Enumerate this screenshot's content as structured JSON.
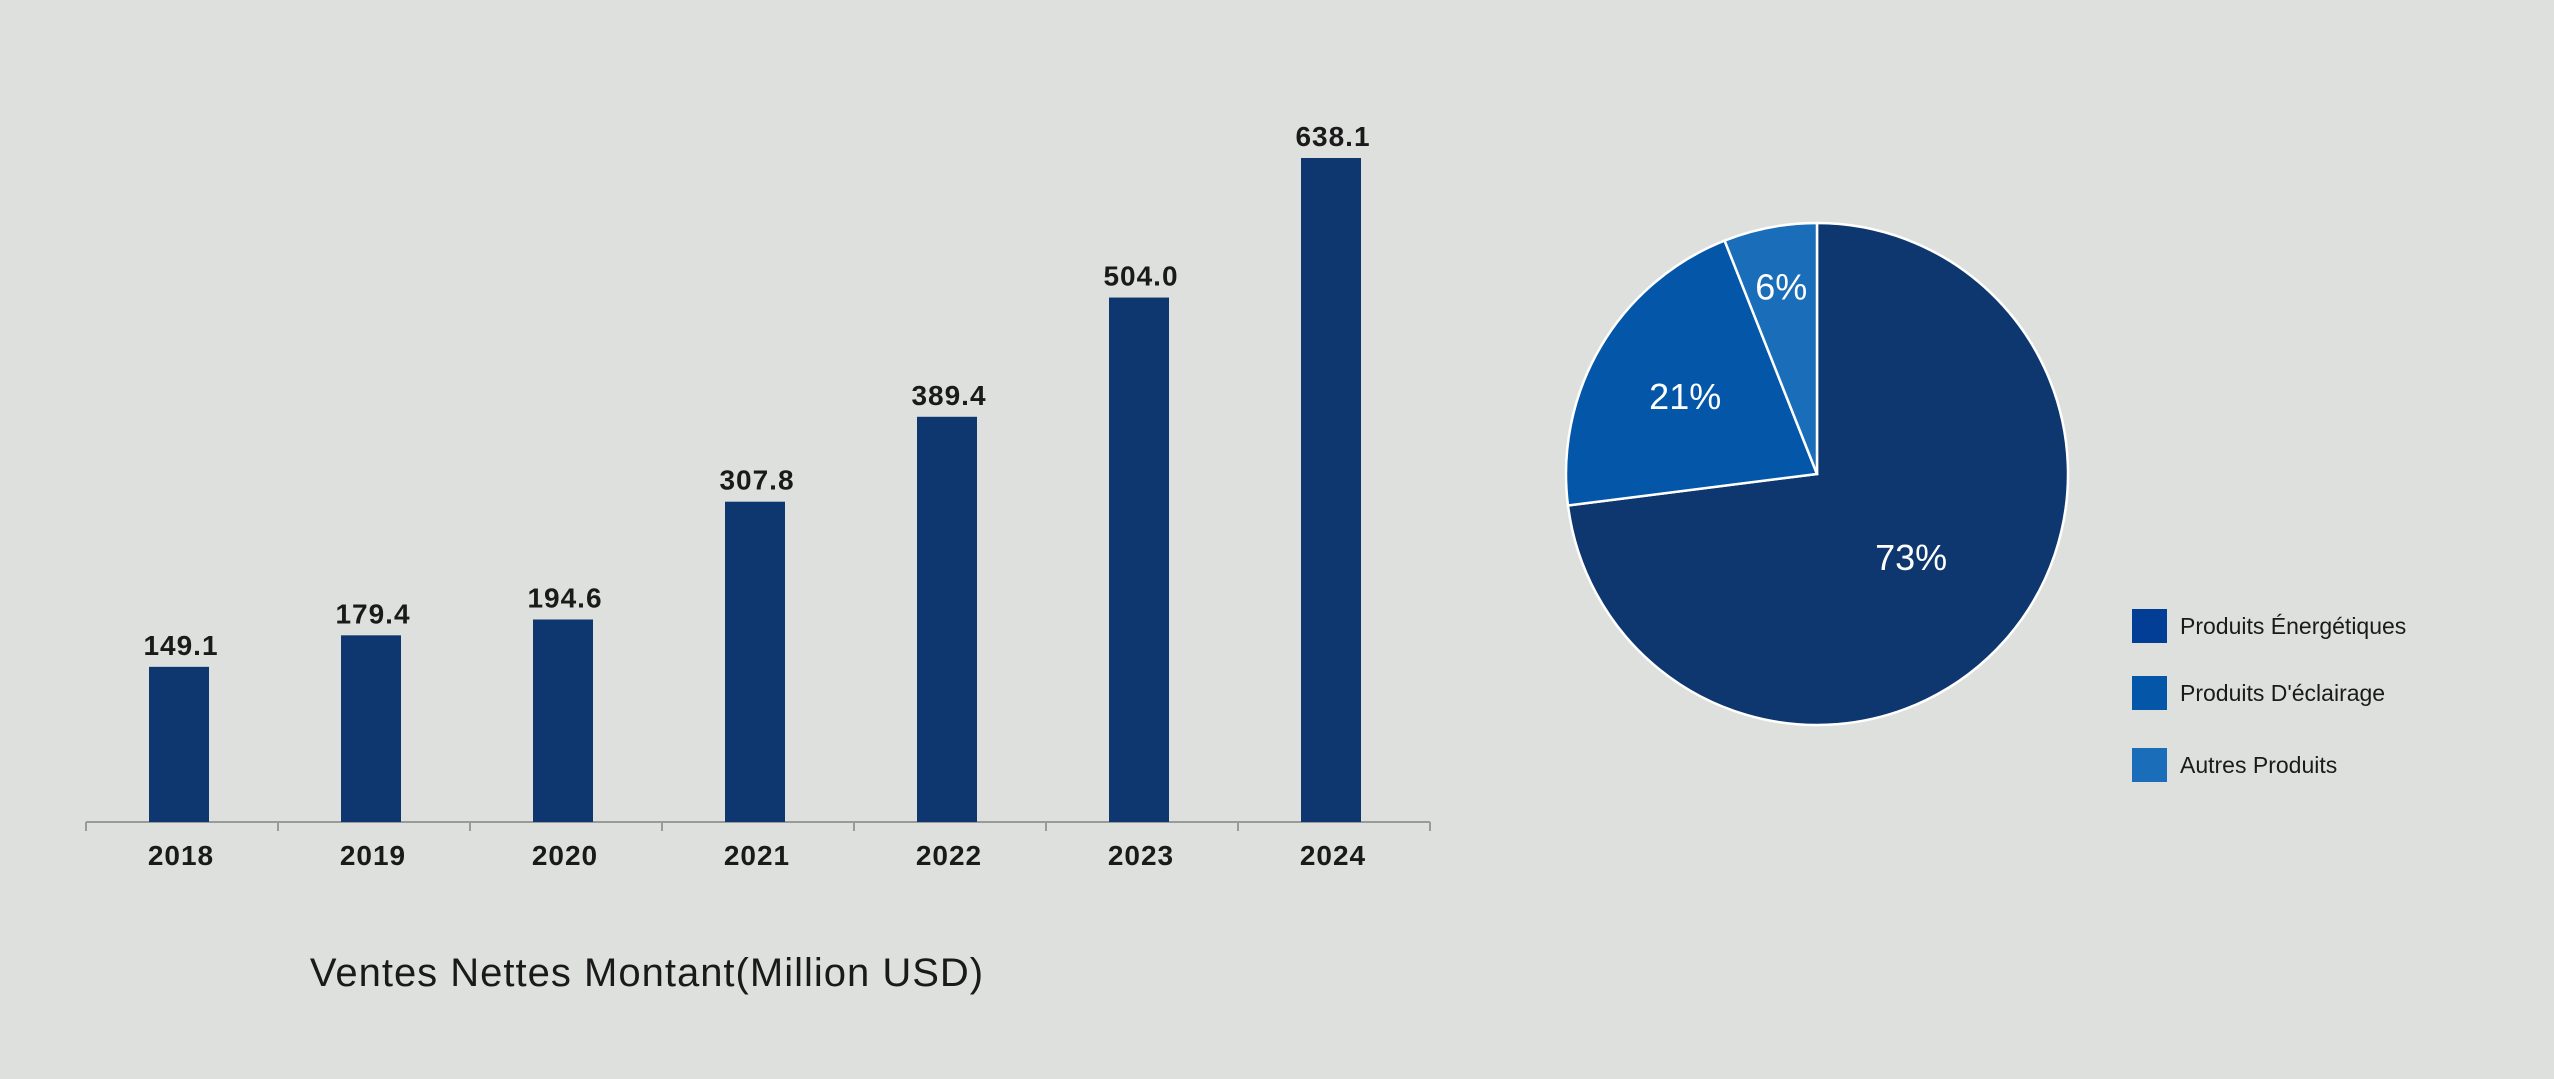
{
  "chart_data": [
    {
      "type": "bar",
      "categories": [
        "2018",
        "2019",
        "2020",
        "2021",
        "2022",
        "2023",
        "2024"
      ],
      "values": [
        149.1,
        179.4,
        194.6,
        307.8,
        389.4,
        504.0,
        638.1
      ],
      "value_labels": [
        "149.1",
        "179.4",
        "194.6",
        "307.8",
        "389.4",
        "504.0",
        "638.1"
      ],
      "xlabel": "Ventes Nettes Montant(Million USD)",
      "ylabel": "",
      "ylim": [
        0,
        640
      ],
      "grid": false,
      "bar_color": "#0d376e"
    },
    {
      "type": "pie",
      "slices": [
        {
          "name": "Produits Énergétiques",
          "value": 73,
          "label": "73%",
          "color": "#0d376e"
        },
        {
          "name": "Produits D'éclairage",
          "value": 21,
          "label": "21%",
          "color": "#0356a8"
        },
        {
          "name": "Autres Produits",
          "value": 6,
          "label": "6%",
          "color": "#1a6db9"
        }
      ],
      "legend": {
        "placement": "right",
        "items": [
          {
            "label": "Produits Énergétiques",
            "color": "#023e96"
          },
          {
            "label": "Produits D'éclairage",
            "color": "#0356a8"
          },
          {
            "label": "Autres Produits",
            "color": "#1a6db9"
          }
        ]
      }
    }
  ]
}
